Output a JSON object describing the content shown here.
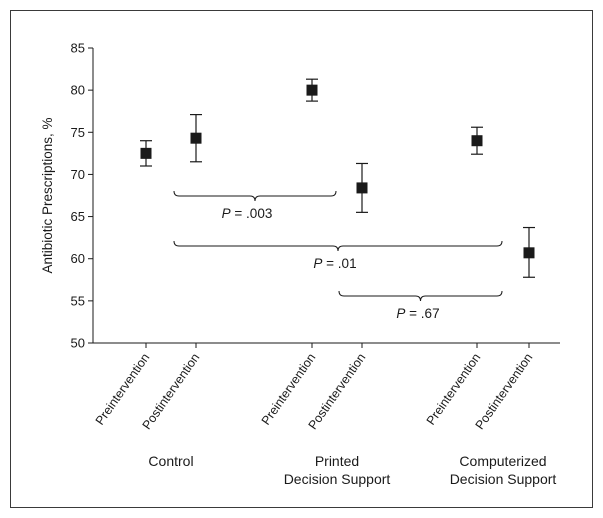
{
  "chart_data": {
    "type": "scatter",
    "ylabel": "Antibiotic Prescriptions, %",
    "ylim": [
      50,
      85
    ],
    "yticks": [
      50,
      55,
      60,
      65,
      70,
      75,
      80,
      85
    ],
    "grid": false,
    "marker_color": "#1a1a1a",
    "groups": [
      {
        "name": "Control",
        "points": [
          {
            "label": "Preintervention",
            "y": 72.5,
            "low": 71.0,
            "high": 74.0
          },
          {
            "label": "Postintervention",
            "y": 74.3,
            "low": 71.5,
            "high": 77.1
          }
        ]
      },
      {
        "name": "Printed Decision Support",
        "name_lines": [
          "Printed",
          "Decision Support"
        ],
        "points": [
          {
            "label": "Preintervention",
            "y": 80.0,
            "low": 78.7,
            "high": 81.3
          },
          {
            "label": "Postintervention",
            "y": 68.4,
            "low": 65.5,
            "high": 71.3
          }
        ]
      },
      {
        "name": "Computerized Decision Support",
        "name_lines": [
          "Computerized",
          "Decision Support"
        ],
        "points": [
          {
            "label": "Preintervention",
            "y": 74.0,
            "low": 72.4,
            "high": 75.6
          },
          {
            "label": "Postintervention",
            "y": 60.7,
            "low": 57.8,
            "high": 63.7
          }
        ]
      }
    ],
    "annotations": [
      {
        "text": "P = .003",
        "italic_part": "P",
        "rest": " = .003",
        "from_point": 1,
        "to_point": 2
      },
      {
        "text": "P = .01",
        "italic_part": "P",
        "rest": " = .01",
        "from_point": 1,
        "to_point": 4
      },
      {
        "text": "P = .67",
        "italic_part": "P",
        "rest": " = .67",
        "from_point": 3,
        "to_point": 4
      }
    ]
  }
}
